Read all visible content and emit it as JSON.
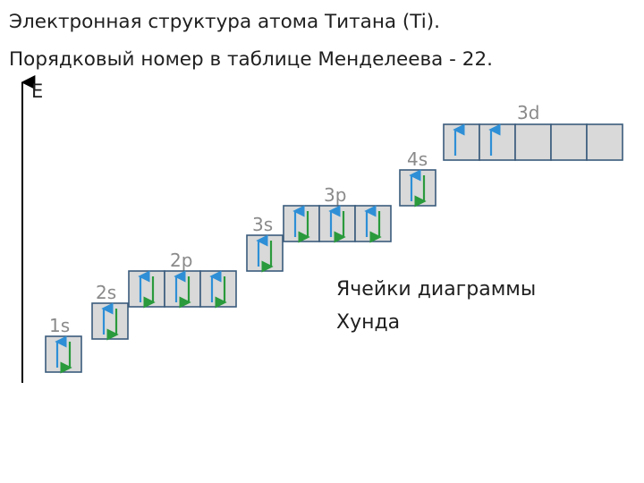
{
  "title": {
    "line1": "Электронная структура атома Титана (Ti).",
    "line2": "Порядковый номер в таблице Менделеева - 22."
  },
  "axis_label": "E",
  "caption": {
    "line1": "Ячейки диаграммы",
    "line2": "Хунда"
  },
  "colors": {
    "cell_fill": "#d9d9d9",
    "cell_border": "#3a5b7c",
    "spin_up": "#2e8fd6",
    "spin_down": "#2a9a3c",
    "label": "#8a8a8a",
    "axis": "#000000"
  },
  "sublevels": [
    {
      "label": "1s",
      "cells": [
        [
          "up",
          "down"
        ]
      ]
    },
    {
      "label": "2s",
      "cells": [
        [
          "up",
          "down"
        ]
      ]
    },
    {
      "label": "2p",
      "cells": [
        [
          "up",
          "down"
        ],
        [
          "up",
          "down"
        ],
        [
          "up",
          "down"
        ]
      ]
    },
    {
      "label": "3s",
      "cells": [
        [
          "up",
          "down"
        ]
      ]
    },
    {
      "label": "3p",
      "cells": [
        [
          "up",
          "down"
        ],
        [
          "up",
          "down"
        ],
        [
          "up",
          "down"
        ]
      ]
    },
    {
      "label": "4s",
      "cells": [
        [
          "up",
          "down"
        ]
      ]
    },
    {
      "label": "3d",
      "cells": [
        [
          "up"
        ],
        [
          "up"
        ],
        [],
        [],
        []
      ]
    }
  ]
}
